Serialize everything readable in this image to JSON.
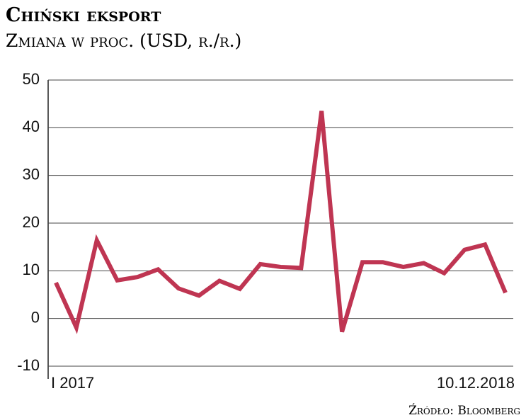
{
  "chart_data": {
    "type": "line",
    "title": "Chiński eksport",
    "subtitle": "Zmiana w proc. (USD, r./r.)",
    "source": "Źródło: Bloomberg",
    "categories": [
      "I 2017",
      null,
      null,
      null,
      null,
      null,
      null,
      null,
      null,
      null,
      null,
      null,
      null,
      null,
      null,
      null,
      null,
      null,
      null,
      null,
      null,
      null,
      "10.12.2018"
    ],
    "series": [
      {
        "name": "Eksport",
        "color": "#bf3552",
        "values": [
          7.5,
          -1.9,
          16.4,
          8.0,
          8.7,
          10.3,
          6.3,
          4.8,
          7.9,
          6.2,
          11.4,
          10.8,
          10.6,
          43.5,
          -2.8,
          11.8,
          11.8,
          10.8,
          11.6,
          9.5,
          14.4,
          15.5,
          5.4
        ]
      }
    ],
    "ylim": [
      -10,
      50
    ],
    "yticks": [
      -10,
      0,
      10,
      20,
      30,
      40,
      50
    ],
    "grid": true
  }
}
